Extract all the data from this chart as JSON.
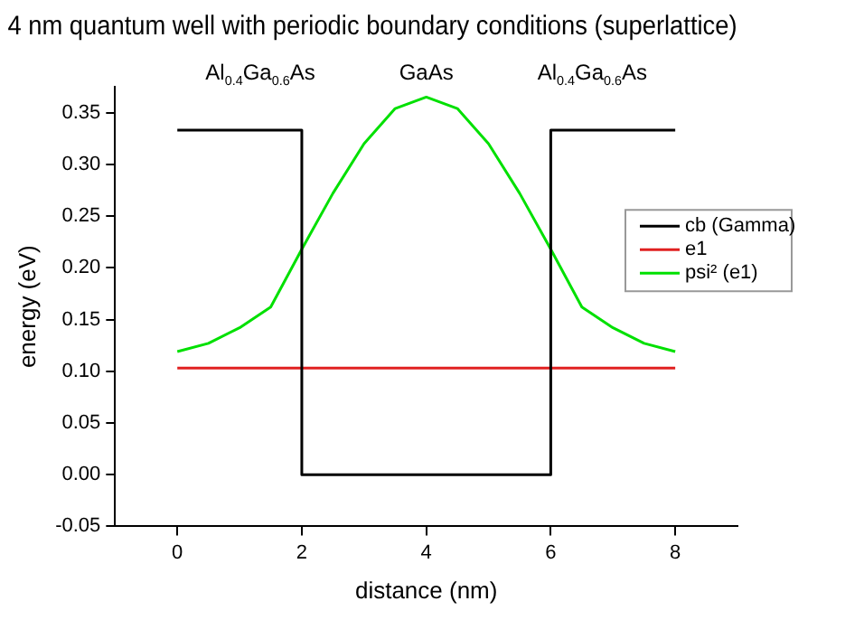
{
  "chart_data": {
    "type": "line",
    "title": "4 nm quantum well with periodic boundary conditions (superlattice)",
    "xlabel": "distance (nm)",
    "ylabel": "energy (eV)",
    "annotations": [
      "Al$_{0.4}$Ga$_{0.6}$As",
      "GaAs",
      "Al$_{0.4}$Ga$_{0.6}$As"
    ],
    "series": [
      {
        "name": "cb (Gamma)",
        "color": "#000000",
        "x": [
          0,
          2,
          2,
          6,
          6,
          8
        ],
        "values": [
          0.333,
          0.333,
          0,
          0,
          0.333,
          0.333
        ]
      },
      {
        "name": "e1",
        "color": "#e02020",
        "x": [
          0,
          8
        ],
        "values": [
          0.103,
          0.103
        ]
      },
      {
        "name": "psi² (e1)",
        "color": "#00e000",
        "x": [
          0,
          0.5,
          1,
          1.5,
          2,
          2.5,
          3,
          3.5,
          4,
          4.5,
          5,
          5.5,
          6,
          6.5,
          7,
          7.5,
          8
        ],
        "values": [
          0.119,
          0.127,
          0.142,
          0.162,
          0.218,
          0.272,
          0.32,
          0.354,
          0.365,
          0.354,
          0.32,
          0.272,
          0.218,
          0.162,
          0.142,
          0.127,
          0.119
        ]
      }
    ],
    "xlim": [
      -1,
      9
    ],
    "xticks": [
      0,
      2,
      4,
      6,
      8
    ],
    "ylim": [
      -0.05,
      0.375
    ],
    "yticks": [
      -0.05,
      {
        "value": 0,
        "label": "0.00"
      },
      0.05,
      {
        "value": 0.1,
        "label": "0.10"
      },
      0.15,
      {
        "value": 0.2,
        "label": "0.20"
      },
      0.25,
      {
        "value": 0.3,
        "label": "0.30"
      },
      0.35
    ],
    "grid": false,
    "legend": "right",
    "marker": "none",
    "line_style": "solid"
  }
}
